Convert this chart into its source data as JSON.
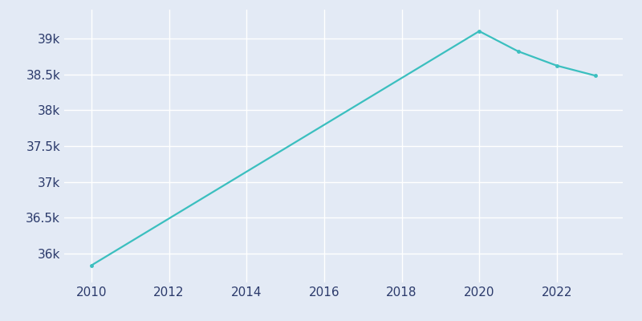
{
  "years": [
    2010,
    2020,
    2021,
    2022,
    2023
  ],
  "population": [
    35838,
    39100,
    38820,
    38620,
    38480
  ],
  "line_color": "#3bbfbf",
  "marker_color": "#3bbfbf",
  "bg_color": "#e3eaf5",
  "grid_color": "#ffffff",
  "text_color": "#2b3a6b",
  "ylim": [
    35600,
    39400
  ],
  "ytick_values": [
    36000,
    36500,
    37000,
    37500,
    38000,
    38500,
    39000
  ],
  "xtick_values": [
    2010,
    2012,
    2014,
    2016,
    2018,
    2020,
    2022
  ],
  "linewidth": 1.6,
  "marker_size": 3.5,
  "tick_fontsize": 11
}
